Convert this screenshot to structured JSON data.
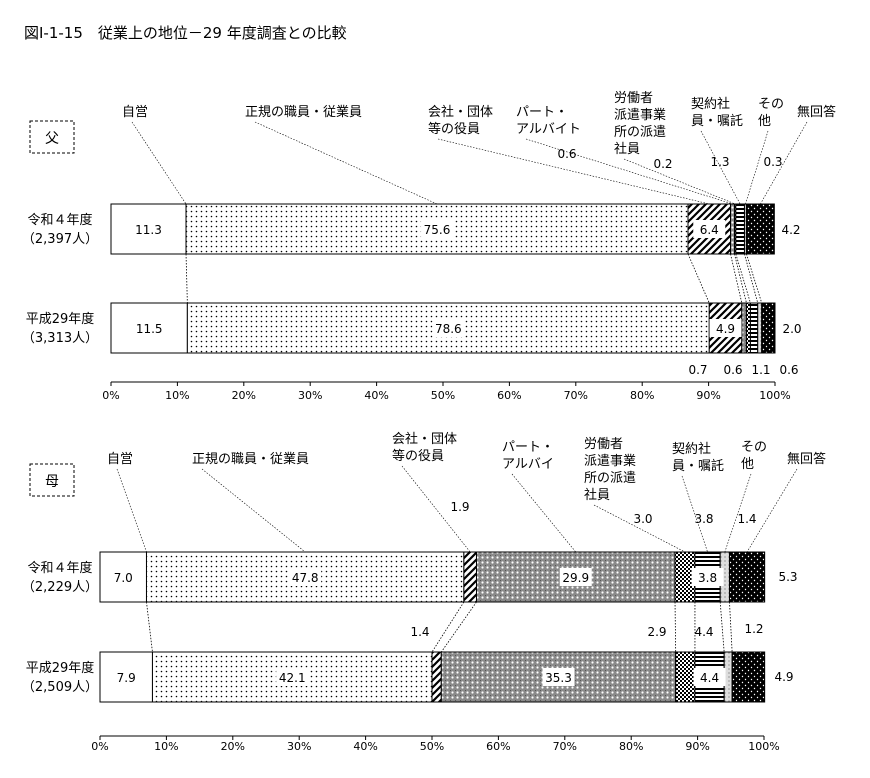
{
  "title": "図Ⅰ-1-15　従業上の地位－29 年度調査との比較",
  "chart_data": {
    "type": "bar",
    "stacked": true,
    "orientation": "horizontal",
    "title": "図Ⅰ-1-15　従業上の地位－29 年度調査との比較",
    "x_ticks": [
      "0%",
      "10%",
      "20%",
      "30%",
      "40%",
      "50%",
      "60%",
      "70%",
      "80%",
      "90%",
      "100%"
    ],
    "xlim": [
      0,
      100
    ],
    "categories_legend": [
      "自営",
      "正規の職員・従業員",
      "会社・団体\n等の役員",
      "パート・\nアルバイト",
      "労働者\n派遣事業\n所の派遣\n社員",
      "契約社\n員・嘱託",
      "その\n他",
      "無回答"
    ],
    "panels": [
      {
        "label": "父",
        "category_labels": [
          "自営",
          "正規の職員・従業員",
          "会社・団体\n等の役員",
          "パート・\nアルバイト",
          "労働者\n派遣事業\n所の派遣\n社員",
          "契約社\n員・嘱託",
          "その\n他",
          "無回答"
        ],
        "rows": [
          {
            "name": "令和４年度",
            "n": "（2,397人）",
            "values": [
              11.3,
              75.6,
              6.4,
              0.6,
              0.2,
              1.3,
              0.3,
              4.2
            ]
          },
          {
            "name": "平成29年度",
            "n": "（3,313人）",
            "values": [
              11.5,
              78.6,
              4.9,
              0.7,
              0.6,
              1.1,
              0.6,
              2.0
            ]
          }
        ]
      },
      {
        "label": "母",
        "category_labels": [
          "自営",
          "正規の職員・従業員",
          "会社・団体\n等の役員",
          "パート・\nアルバイ",
          "労働者\n派遣事業\n所の派遣\n社員",
          "契約社\n員・嘱託",
          "その\n他",
          "無回答"
        ],
        "rows": [
          {
            "name": "令和４年度",
            "n": "（2,229人）",
            "values": [
              7.0,
              47.8,
              1.9,
              29.9,
              3.0,
              3.8,
              1.4,
              5.3
            ]
          },
          {
            "name": "平成29年度",
            "n": "（2,509人）",
            "values": [
              7.9,
              42.1,
              1.4,
              35.3,
              2.9,
              4.4,
              1.2,
              4.9
            ]
          }
        ]
      }
    ]
  }
}
